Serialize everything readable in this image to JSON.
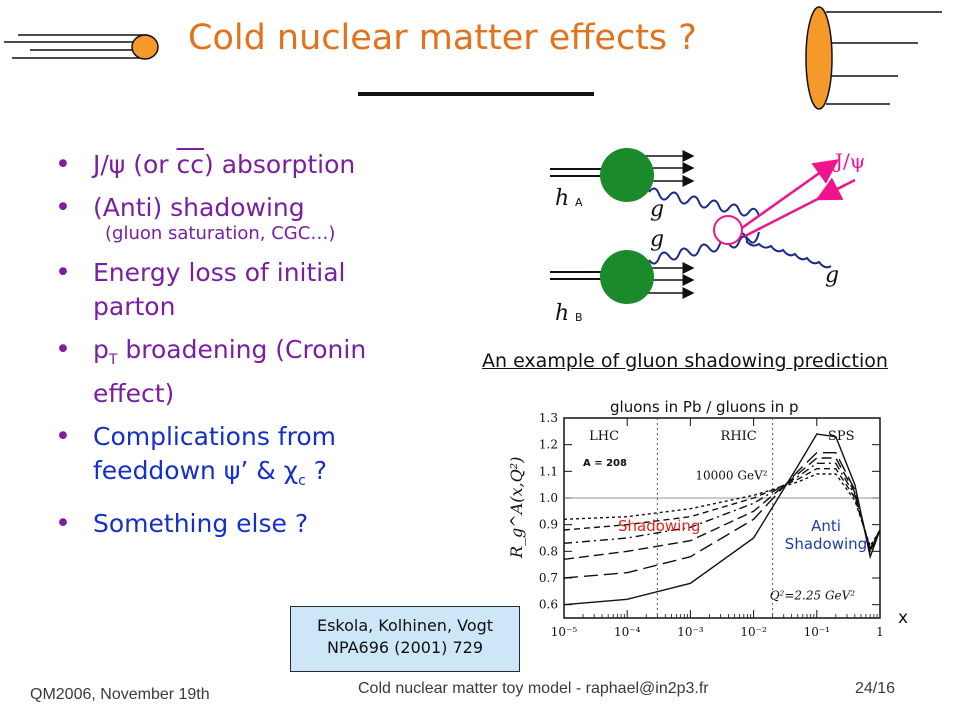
{
  "slide": {
    "title": "Cold nuclear matter effects ?",
    "bullets": [
      {
        "pre": "J/ψ (or ",
        "over": "cc",
        "post": ") absorption",
        "color": "purple"
      },
      {
        "text": "(Anti) shadowing",
        "color": "purple"
      },
      {
        "sub": "(gluon saturation, CGC…)"
      },
      {
        "text": "Energy loss of initial parton",
        "color": "purple"
      },
      {
        "pre": "p",
        "subscript": "T",
        "post": " broadening (Cronin effect)",
        "color": "purple"
      },
      {
        "pre": "Complications from feeddown ψ’ & χ",
        "subscript": "c",
        "post": " ?",
        "color": "blue"
      },
      {
        "text": "Something else ?",
        "color": "blue"
      }
    ],
    "diagram": {
      "hA": "h",
      "hA_sub": "A",
      "hB": "h",
      "hB_sub": "B",
      "g1": "g",
      "g2": "g",
      "g3": "g",
      "jpsi": "J/ψ"
    },
    "caption": "An example of gluon shadowing prediction",
    "plot_title": "gluons in Pb / gluons in p",
    "x_axis_label": "x",
    "reference": {
      "line1": "Eskola, Kolhinen, Vogt",
      "line2": "NPA696 (2001) 729"
    },
    "footer": {
      "left": "QM2006, November 19th",
      "center": "Cold nuclear matter toy model - raphael@in2p3.fr",
      "right": "24/16"
    }
  },
  "chart_data": {
    "type": "line",
    "title": "",
    "xlabel": "",
    "ylabel": "R_g^A(x,Q²)",
    "xscale": "log",
    "xlim": [
      1e-05,
      1
    ],
    "ylim": [
      0.55,
      1.3
    ],
    "x_ticks": [
      "10⁻⁵",
      "10⁻⁴",
      "10⁻³",
      "10⁻²",
      "10⁻¹",
      "1"
    ],
    "y_ticks": [
      "0.6",
      "0.7",
      "0.8",
      "0.9",
      "1.0",
      "1.1",
      "1.2",
      "1.3"
    ],
    "region_labels": [
      "LHC",
      "RHIC",
      "SPS"
    ],
    "annotations": [
      "A = 208",
      "10000 GeV²",
      "Q²=2.25 GeV²",
      "Shadowing",
      "Anti Shadowing"
    ],
    "series": [
      {
        "x": [
          1e-05,
          0.0001,
          0.001,
          0.01,
          0.05,
          0.1,
          0.2,
          0.4,
          0.7,
          1
        ],
        "y": [
          0.6,
          0.62,
          0.68,
          0.85,
          1.12,
          1.24,
          1.23,
          1.05,
          0.78,
          0.88
        ]
      },
      {
        "x": [
          1e-05,
          0.0001,
          0.001,
          0.01,
          0.05,
          0.1,
          0.2,
          0.4,
          0.7,
          1
        ],
        "y": [
          0.7,
          0.72,
          0.78,
          0.92,
          1.1,
          1.17,
          1.17,
          1.03,
          0.8,
          0.88
        ]
      },
      {
        "x": [
          1e-05,
          0.0001,
          0.001,
          0.01,
          0.05,
          0.1,
          0.2,
          0.4,
          0.7,
          1
        ],
        "y": [
          0.77,
          0.8,
          0.84,
          0.95,
          1.09,
          1.15,
          1.15,
          1.02,
          0.8,
          0.88
        ]
      },
      {
        "x": [
          1e-05,
          0.0001,
          0.001,
          0.01,
          0.05,
          0.1,
          0.2,
          0.4,
          0.7,
          1
        ],
        "y": [
          0.83,
          0.85,
          0.89,
          0.98,
          1.08,
          1.13,
          1.13,
          1.01,
          0.81,
          0.88
        ]
      },
      {
        "x": [
          1e-05,
          0.0001,
          0.001,
          0.01,
          0.05,
          0.1,
          0.2,
          0.4,
          0.7,
          1
        ],
        "y": [
          0.88,
          0.9,
          0.93,
          1.0,
          1.07,
          1.11,
          1.11,
          1.0,
          0.81,
          0.88
        ]
      },
      {
        "x": [
          1e-05,
          0.0001,
          0.001,
          0.01,
          0.05,
          0.1,
          0.2,
          0.4,
          0.7,
          1
        ],
        "y": [
          0.92,
          0.93,
          0.96,
          1.01,
          1.06,
          1.09,
          1.09,
          0.99,
          0.82,
          0.88
        ]
      }
    ]
  },
  "colors": {
    "title": "#e2731c",
    "bullet_purple": "#7a1fa2",
    "bullet_blue": "#1530c8",
    "green_blob": "#1a8a2a",
    "magenta": "#f0148c",
    "ref_box": "#cde7f8"
  }
}
